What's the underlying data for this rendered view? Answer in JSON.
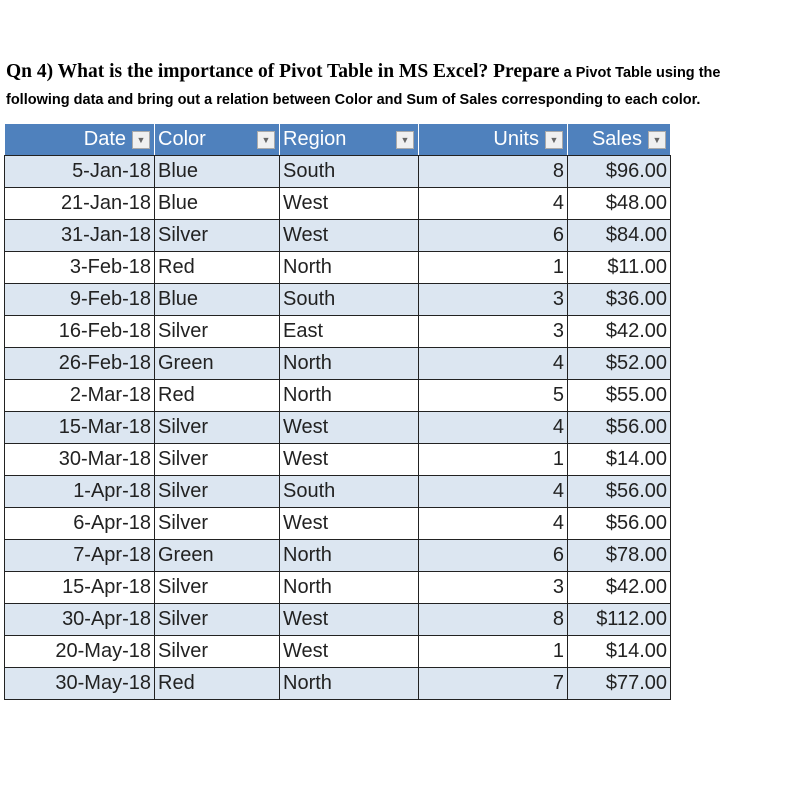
{
  "question": {
    "serif_part": "Qn 4) What is the importance of Pivot Table in MS Excel? Prepare",
    "sans_part": " a Pivot Table using the",
    "line2": "following data and bring out a relation between Color and Sum of Sales corresponding to each color."
  },
  "colors": {
    "header": "#4F81BD",
    "band": "#DCE6F1"
  },
  "table": {
    "headers": [
      "Date",
      "Color",
      "Region",
      "Units",
      "Sales"
    ],
    "rows": [
      [
        "5-Jan-18",
        "Blue",
        "South",
        "8",
        "$96.00"
      ],
      [
        "21-Jan-18",
        "Blue",
        "West",
        "4",
        "$48.00"
      ],
      [
        "31-Jan-18",
        "Silver",
        "West",
        "6",
        "$84.00"
      ],
      [
        "3-Feb-18",
        "Red",
        "North",
        "1",
        "$11.00"
      ],
      [
        "9-Feb-18",
        "Blue",
        "South",
        "3",
        "$36.00"
      ],
      [
        "16-Feb-18",
        "Silver",
        "East",
        "3",
        "$42.00"
      ],
      [
        "26-Feb-18",
        "Green",
        "North",
        "4",
        "$52.00"
      ],
      [
        "2-Mar-18",
        "Red",
        "North",
        "5",
        "$55.00"
      ],
      [
        "15-Mar-18",
        "Silver",
        "West",
        "4",
        "$56.00"
      ],
      [
        "30-Mar-18",
        "Silver",
        "West",
        "1",
        "$14.00"
      ],
      [
        "1-Apr-18",
        "Silver",
        "South",
        "4",
        "$56.00"
      ],
      [
        "6-Apr-18",
        "Silver",
        "West",
        "4",
        "$56.00"
      ],
      [
        "7-Apr-18",
        "Green",
        "North",
        "6",
        "$78.00"
      ],
      [
        "15-Apr-18",
        "Silver",
        "North",
        "3",
        "$42.00"
      ],
      [
        "30-Apr-18",
        "Silver",
        "West",
        "8",
        "$112.00"
      ],
      [
        "20-May-18",
        "Silver",
        "West",
        "1",
        "$14.00"
      ],
      [
        "30-May-18",
        "Red",
        "North",
        "7",
        "$77.00"
      ]
    ]
  }
}
